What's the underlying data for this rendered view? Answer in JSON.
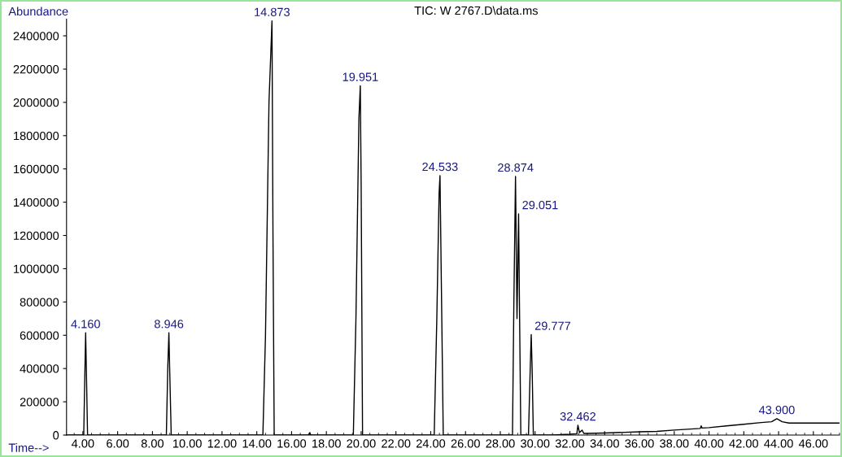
{
  "chart_data": {
    "type": "line",
    "title": "TIC: W 2767.D\\data.ms",
    "ylabel": "Abundance",
    "xlabel": "Time-->",
    "xlim": [
      3.06,
      47.5
    ],
    "ylim": [
      0,
      2500000
    ],
    "xticks": [
      {
        "value": 4,
        "label": "4.00"
      },
      {
        "value": 6,
        "label": "6.00"
      },
      {
        "value": 8,
        "label": "8.00"
      },
      {
        "value": 10,
        "label": "10.00"
      },
      {
        "value": 12,
        "label": "12.00"
      },
      {
        "value": 14,
        "label": "14.00"
      },
      {
        "value": 16,
        "label": "16.00"
      },
      {
        "value": 18,
        "label": "18.00"
      },
      {
        "value": 20,
        "label": "20.00"
      },
      {
        "value": 22,
        "label": "22.00"
      },
      {
        "value": 24,
        "label": "24.00"
      },
      {
        "value": 26,
        "label": "26.00"
      },
      {
        "value": 28,
        "label": "28.00"
      },
      {
        "value": 30,
        "label": "30.00"
      },
      {
        "value": 32,
        "label": "32.00"
      },
      {
        "value": 34,
        "label": "34.00"
      },
      {
        "value": 36,
        "label": "36.00"
      },
      {
        "value": 38,
        "label": "38.00"
      },
      {
        "value": 40,
        "label": "40.00"
      },
      {
        "value": 42,
        "label": "42.00"
      },
      {
        "value": 44,
        "label": "44.00"
      },
      {
        "value": 46,
        "label": "46.00"
      }
    ],
    "yticks": [
      0,
      200000,
      400000,
      600000,
      800000,
      1000000,
      1200000,
      1400000,
      1600000,
      1800000,
      2000000,
      2200000,
      2400000
    ],
    "marker": "none",
    "line_style": "solid",
    "series": [
      {
        "color": "#000000",
        "x": [
          3.06,
          4.05,
          4.12,
          4.16,
          4.2,
          4.27,
          8.8,
          8.88,
          8.946,
          8.99,
          9.08,
          14.35,
          14.5,
          14.7,
          14.873,
          14.93,
          15.0,
          17.0,
          17.05,
          17.1,
          19.55,
          19.7,
          19.87,
          19.951,
          20.0,
          20.08,
          24.2,
          24.35,
          24.48,
          24.533,
          24.6,
          24.72,
          28.7,
          28.78,
          28.874,
          28.96,
          29.051,
          29.1,
          29.18,
          29.62,
          29.72,
          29.777,
          29.83,
          29.9,
          31.0,
          32.0,
          32.4,
          32.462,
          32.55,
          32.7,
          32.8,
          33.0,
          34.0,
          36.0,
          37.0,
          38.0,
          39.5,
          39.55,
          39.6,
          40.0,
          41.0,
          42.0,
          43.0,
          43.6,
          43.9,
          44.2,
          44.6,
          45.0,
          46.0,
          47.5
        ],
        "values": [
          0,
          0,
          400000,
          615000,
          400000,
          0,
          0,
          400000,
          615000,
          400000,
          0,
          0,
          600000,
          2000000,
          2490000,
          1200000,
          0,
          0,
          15000,
          0,
          0,
          700000,
          1900000,
          2100000,
          1500000,
          0,
          0,
          700000,
          1450000,
          1560000,
          1000000,
          0,
          0,
          800000,
          1555000,
          700000,
          1330000,
          800000,
          0,
          0,
          400000,
          604000,
          400000,
          0,
          0,
          5000,
          8000,
          59000,
          15000,
          30000,
          10000,
          10000,
          12000,
          20000,
          22000,
          30000,
          40000,
          55000,
          42000,
          45000,
          55000,
          65000,
          75000,
          80000,
          98000,
          80000,
          72000,
          72000,
          72000,
          72000
        ]
      }
    ],
    "annotations": [
      {
        "text": "4.160",
        "x": 4.16,
        "y": 615000
      },
      {
        "text": "8.946",
        "x": 8.946,
        "y": 615000
      },
      {
        "text": "14.873",
        "x": 14.873,
        "y": 2490000
      },
      {
        "text": "19.951",
        "x": 19.951,
        "y": 2100000
      },
      {
        "text": "24.533",
        "x": 24.533,
        "y": 1560000
      },
      {
        "text": "28.874",
        "x": 28.874,
        "y": 1555000
      },
      {
        "text": "29.051",
        "x": 29.051,
        "y": 1330000
      },
      {
        "text": "29.777",
        "x": 29.777,
        "y": 604000
      },
      {
        "text": "32.462",
        "x": 32.462,
        "y": 59000
      },
      {
        "text": "43.900",
        "x": 43.9,
        "y": 98000
      }
    ]
  }
}
